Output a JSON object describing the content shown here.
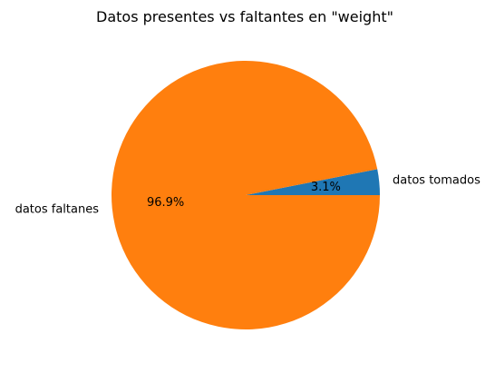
{
  "chart_data": {
    "type": "pie",
    "title": "Datos presentes vs faltantes en \"weight\"",
    "slices": [
      {
        "label": "datos tomados",
        "value": 3.1,
        "pct_label": "3.1%",
        "color": "#1f77b4"
      },
      {
        "label": "datos faltanes",
        "value": 96.9,
        "pct_label": "96.9%",
        "color": "#ff7f0e"
      }
    ],
    "start_angle_deg": 0,
    "direction": "counterclockwise"
  }
}
